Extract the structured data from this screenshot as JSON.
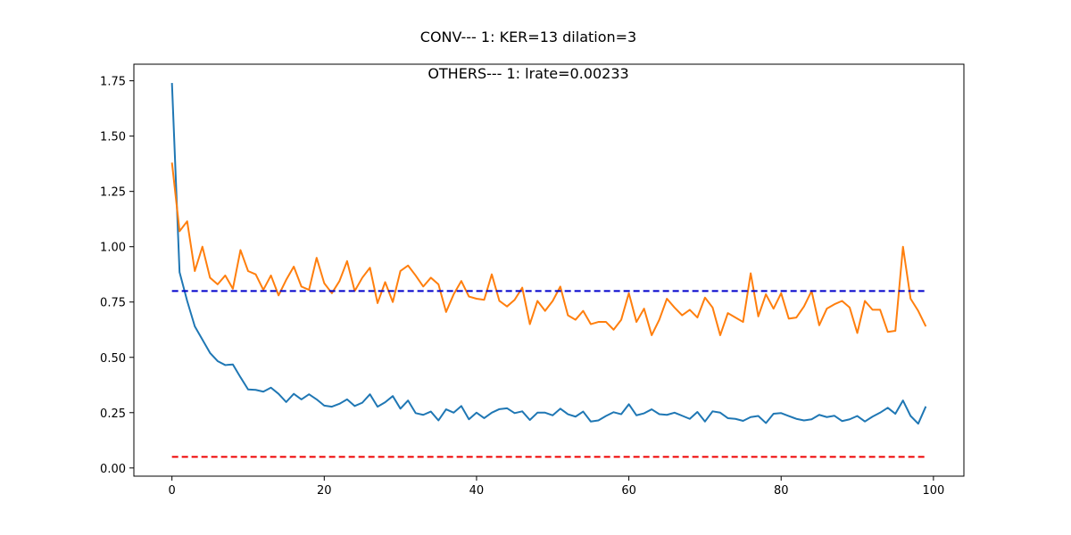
{
  "chart_data": {
    "type": "line",
    "title": "CONV--- 1: KER=13   dilation=3",
    "subtitle": "OTHERS--- 1: lrate=0.00233",
    "xlabel": "",
    "ylabel": "",
    "xlim": [
      -5,
      104
    ],
    "ylim": [
      -0.037,
      1.825
    ],
    "grid": false,
    "xticks": [
      0,
      20,
      40,
      60,
      80,
      100
    ],
    "xtick_labels": [
      "0",
      "20",
      "40",
      "60",
      "80",
      "100"
    ],
    "yticks": [
      0.0,
      0.25,
      0.5,
      0.75,
      1.0,
      1.25,
      1.5,
      1.75
    ],
    "ytick_labels": [
      "0.00",
      "0.25",
      "0.50",
      "0.75",
      "1.00",
      "1.25",
      "1.50",
      "1.75"
    ],
    "colors": {
      "series1": "#1f77b4",
      "series2": "#ff7f0e",
      "hline_blue": "#0000cc",
      "hline_red": "#ee0000",
      "axes": "#000000"
    },
    "series": [
      {
        "color": "#1f77b4",
        "x_start": 0,
        "x_step": 1,
        "values": [
          1.74,
          0.885,
          0.755,
          0.64,
          0.58,
          0.52,
          0.483,
          0.465,
          0.468,
          0.41,
          0.355,
          0.353,
          0.345,
          0.363,
          0.335,
          0.298,
          0.335,
          0.31,
          0.333,
          0.31,
          0.282,
          0.277,
          0.29,
          0.31,
          0.28,
          0.295,
          0.333,
          0.277,
          0.297,
          0.325,
          0.268,
          0.305,
          0.248,
          0.24,
          0.255,
          0.215,
          0.265,
          0.25,
          0.28,
          0.22,
          0.25,
          0.225,
          0.25,
          0.266,
          0.27,
          0.248,
          0.256,
          0.217,
          0.25,
          0.25,
          0.238,
          0.268,
          0.243,
          0.232,
          0.255,
          0.21,
          0.215,
          0.235,
          0.252,
          0.243,
          0.288,
          0.238,
          0.247,
          0.265,
          0.243,
          0.24,
          0.25,
          0.236,
          0.222,
          0.253,
          0.21,
          0.256,
          0.25,
          0.225,
          0.222,
          0.213,
          0.23,
          0.235,
          0.203,
          0.245,
          0.248,
          0.235,
          0.222,
          0.215,
          0.22,
          0.24,
          0.23,
          0.236,
          0.212,
          0.22,
          0.235,
          0.21,
          0.232,
          0.25,
          0.272,
          0.245,
          0.305,
          0.235,
          0.2,
          0.278
        ]
      },
      {
        "color": "#ff7f0e",
        "x_start": 0,
        "x_step": 1,
        "values": [
          1.38,
          1.07,
          1.115,
          0.89,
          1.0,
          0.86,
          0.83,
          0.87,
          0.81,
          0.985,
          0.89,
          0.875,
          0.805,
          0.87,
          0.78,
          0.85,
          0.91,
          0.82,
          0.805,
          0.95,
          0.835,
          0.79,
          0.845,
          0.935,
          0.8,
          0.86,
          0.905,
          0.745,
          0.84,
          0.75,
          0.89,
          0.915,
          0.87,
          0.82,
          0.86,
          0.83,
          0.705,
          0.785,
          0.845,
          0.775,
          0.765,
          0.76,
          0.875,
          0.755,
          0.73,
          0.76,
          0.815,
          0.65,
          0.755,
          0.71,
          0.755,
          0.82,
          0.69,
          0.67,
          0.71,
          0.65,
          0.66,
          0.66,
          0.625,
          0.67,
          0.79,
          0.66,
          0.72,
          0.6,
          0.67,
          0.765,
          0.725,
          0.69,
          0.715,
          0.68,
          0.77,
          0.725,
          0.6,
          0.7,
          0.68,
          0.66,
          0.88,
          0.685,
          0.785,
          0.72,
          0.79,
          0.675,
          0.68,
          0.73,
          0.8,
          0.645,
          0.72,
          0.74,
          0.755,
          0.725,
          0.61,
          0.755,
          0.715,
          0.715,
          0.615,
          0.62,
          1.0,
          0.765,
          0.71,
          0.64
        ]
      }
    ],
    "hlines": [
      {
        "y": 0.8,
        "color": "#0000cc",
        "style": "dashed",
        "x_from": 0,
        "x_to": 99
      },
      {
        "y": 0.05,
        "color": "#ee0000",
        "style": "dashed",
        "x_from": 0,
        "x_to": 99
      }
    ]
  }
}
